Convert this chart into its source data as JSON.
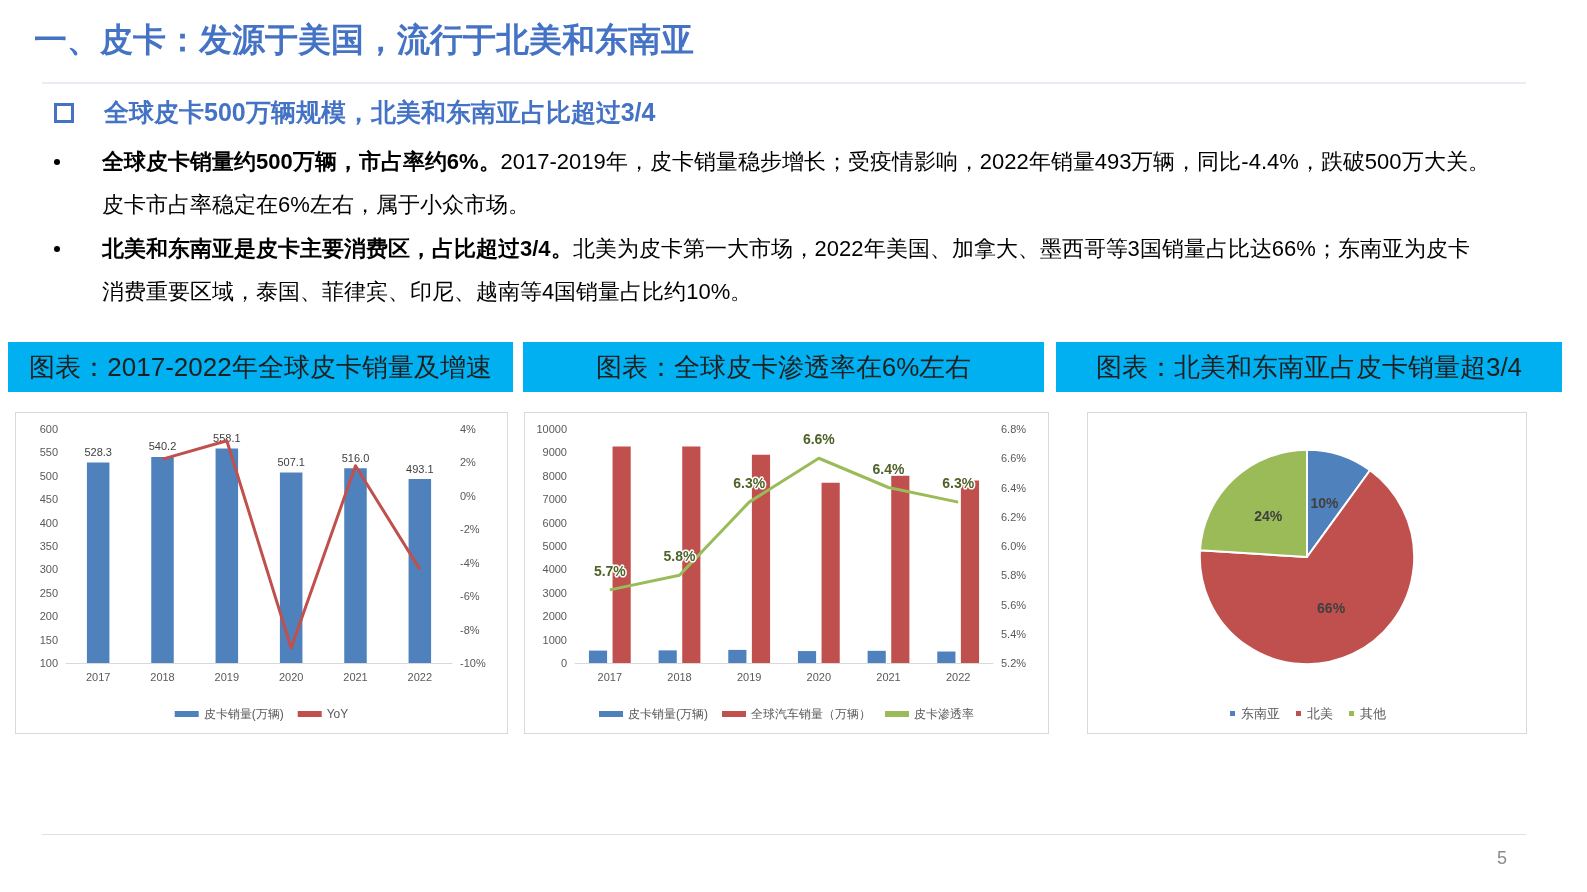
{
  "chart_data": [
    {
      "type": "bar",
      "title": "图表：2017-2022年全球皮卡销量及增速",
      "annotations": [
        "一、皮卡：发源于美国，流行于北美和东南亚",
        "全球皮卡500万辆规模，北美和东南亚占比超过3/4",
        "全球皮卡销量约500万辆，市占率约6%。",
        "2017-2019年，皮卡销量稳步增长；受疫情影响，2022年销量493万辆，同比-4.4%，跌破500万大关。皮卡市占率稳定在6%左右，属于小众市场。",
        "北美和东南亚是皮卡主要消费区，占比超过3/4。",
        "北美为皮卡第一大市场，2022年美国、加拿大、墨西哥等3国销量占比达66%；东南亚为皮卡消费重要区域，泰国、菲律宾、印尼、越南等4国销量占比约10%。"
      ],
      "categories": [
        "2017",
        "2018",
        "2019",
        "2020",
        "2021",
        "2022"
      ],
      "series": [
        {
          "name": "皮卡销量(万辆)",
          "color": "#4f81bd",
          "values": [
            528.3,
            540.2,
            558.1,
            507.1,
            516.0,
            493.1
          ],
          "value_labels": [
            "528.3",
            "540.2",
            "558.1",
            "507.1",
            "516.0",
            "493.1"
          ]
        },
        {
          "name": "YoY",
          "type": "line",
          "axis": "y2",
          "color": "#c0504d",
          "values": [
            null,
            2.2,
            3.3,
            -9.1,
            1.8,
            -4.4
          ]
        }
      ],
      "ylim": [
        100,
        600
      ],
      "yticks": [
        100,
        150,
        200,
        250,
        300,
        350,
        400,
        450,
        500,
        550,
        600
      ],
      "y2lim": [
        -10,
        4
      ],
      "y2ticks": [
        {
          "value": -10,
          "label": "-10%"
        },
        {
          "value": -8,
          "label": "-8%"
        },
        {
          "value": -6,
          "label": "-6%"
        },
        {
          "value": -4,
          "label": "-4%"
        },
        {
          "value": -2,
          "label": "-2%"
        },
        {
          "value": 0,
          "label": "0%"
        },
        {
          "value": 2,
          "label": "2%"
        },
        {
          "value": 4,
          "label": "4%"
        }
      ],
      "grid": false,
      "legend": "bottom",
      "marker": "none"
    },
    {
      "type": "bar",
      "title": "图表：全球皮卡渗透率在6%左右",
      "categories": [
        "2017",
        "2018",
        "2019",
        "2020",
        "2021",
        "2022"
      ],
      "series": [
        {
          "name": "皮卡销量(万辆)",
          "color": "#4f81bd",
          "values": [
            530,
            540,
            560,
            510,
            520,
            490
          ]
        },
        {
          "name": "全球汽车销量（万辆）",
          "color": "#c0504d",
          "values": [
            9250,
            9250,
            8900,
            7700,
            8000,
            7800
          ]
        },
        {
          "name": "皮卡渗透率",
          "type": "line",
          "axis": "y2",
          "color": "#9bbb59",
          "values": [
            5.7,
            5.8,
            6.3,
            6.6,
            6.4,
            6.3
          ],
          "value_labels": [
            "5.7%",
            "5.8%",
            "6.3%",
            "6.6%",
            "6.4%",
            "6.3%"
          ]
        }
      ],
      "ylim": [
        0,
        10000
      ],
      "yticks": [
        0,
        1000,
        2000,
        3000,
        4000,
        5000,
        6000,
        7000,
        8000,
        9000,
        10000
      ],
      "y2lim": [
        5.2,
        6.8
      ],
      "y2ticks": [
        {
          "value": 5.2,
          "label": "5.2%"
        },
        {
          "value": 5.4,
          "label": "5.4%"
        },
        {
          "value": 5.6,
          "label": "5.6%"
        },
        {
          "value": 5.8,
          "label": "5.8%"
        },
        {
          "value": 6.0,
          "label": "6.0%"
        },
        {
          "value": 6.2,
          "label": "6.2%"
        },
        {
          "value": 6.4,
          "label": "6.4%"
        },
        {
          "value": 6.6,
          "label": "6.6%"
        },
        {
          "value": 6.8,
          "label": "6.8%"
        }
      ],
      "grid": false,
      "legend": "bottom",
      "marker": "none"
    },
    {
      "type": "pie",
      "title": "图表：北美和东南亚占皮卡销量超3/4",
      "annotations": [
        "5"
      ],
      "categories": [
        "东南亚",
        "北美",
        "其他"
      ],
      "values": [
        10,
        66,
        24
      ],
      "colors": [
        "#4f81bd",
        "#c0504d",
        "#9bbb59"
      ],
      "value_labels": [
        "10%",
        "66%",
        "24%"
      ],
      "legend": "bottom"
    }
  ]
}
